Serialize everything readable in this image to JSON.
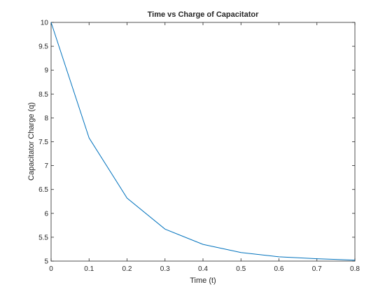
{
  "chart_data": {
    "type": "line",
    "title": "Time vs Charge of Capacitator",
    "xlabel": "Time (t)",
    "ylabel": "Capacitator Charge (q)",
    "xlim": [
      0,
      0.8
    ],
    "ylim": [
      5,
      10
    ],
    "xticks": [
      "0",
      "0.1",
      "0.2",
      "0.3",
      "0.4",
      "0.5",
      "0.6",
      "0.7",
      "0.8"
    ],
    "yticks": [
      "5",
      "5.5",
      "6",
      "6.5",
      "7",
      "7.5",
      "8",
      "8.5",
      "9",
      "9.5",
      "10"
    ],
    "grid": false,
    "series": [
      {
        "color": "#0072BD",
        "x": [
          0,
          0.1,
          0.2,
          0.3,
          0.4,
          0.5,
          0.6,
          0.7,
          0.8
        ],
        "y": [
          10.0,
          7.58,
          6.32,
          5.67,
          5.35,
          5.18,
          5.09,
          5.05,
          5.02
        ]
      }
    ]
  }
}
